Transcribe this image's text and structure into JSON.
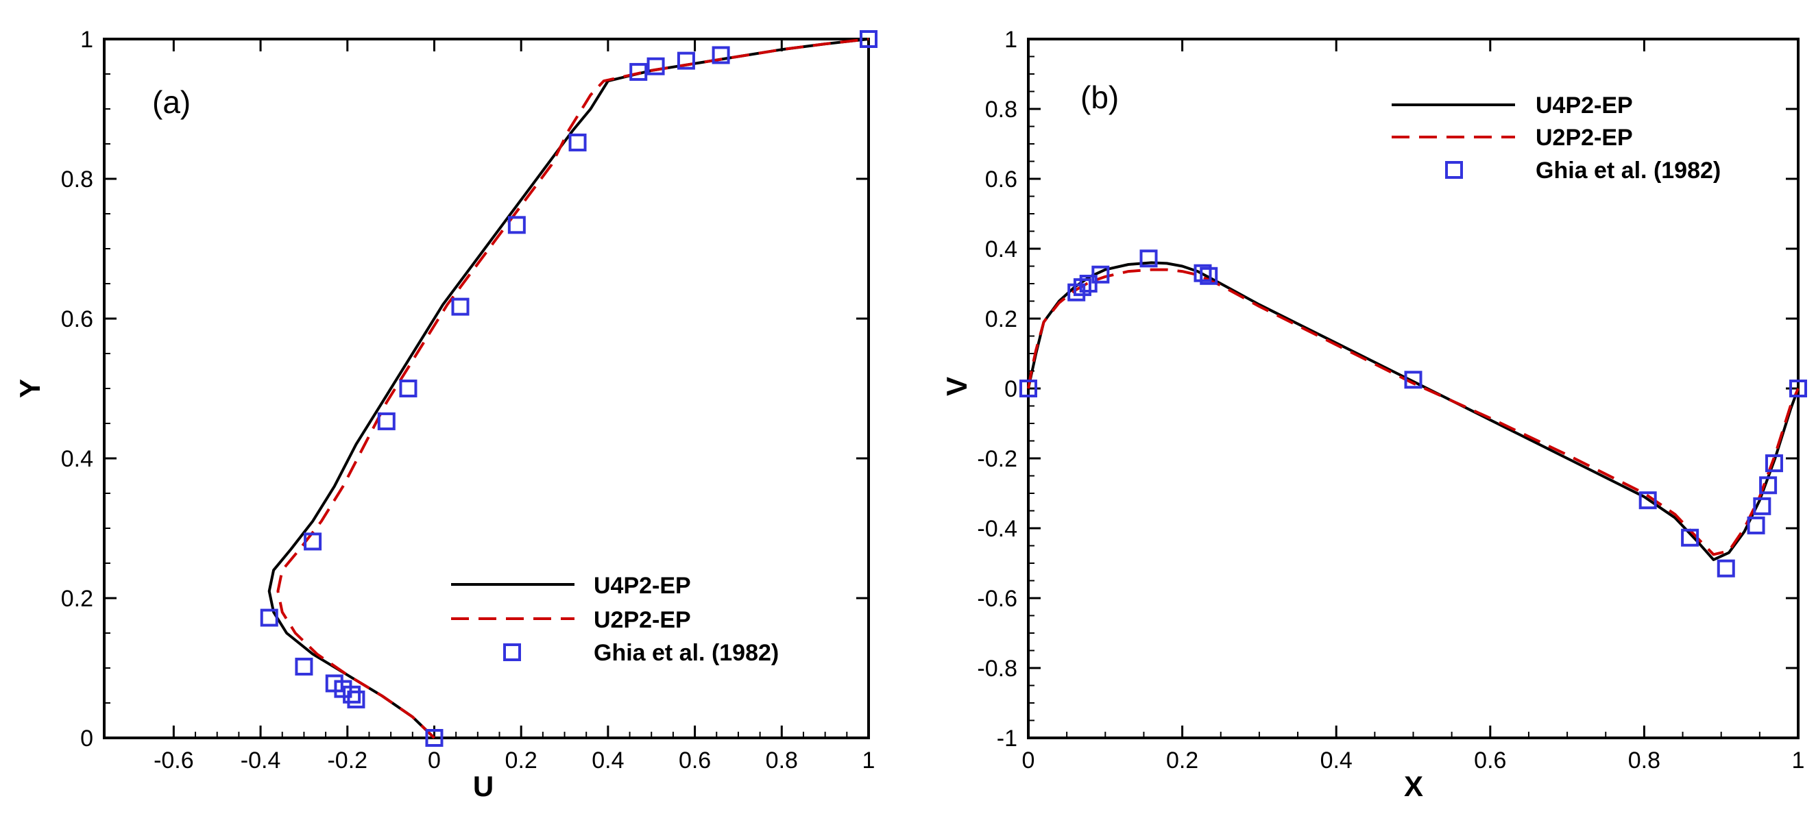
{
  "figure": {
    "panels": [
      "(a)",
      "(b)"
    ]
  },
  "chart_data": [
    {
      "type": "line",
      "panel_label": "(a)",
      "xlabel": "U",
      "ylabel": "Y",
      "xlim": [
        -0.76,
        1.0
      ],
      "ylim": [
        0,
        1
      ],
      "xticks": [
        -0.6,
        -0.4,
        -0.2,
        0,
        0.2,
        0.4,
        0.6,
        0.8,
        1
      ],
      "xtick_labels": [
        "-0.6",
        "-0.4",
        "-0.2",
        "0",
        "0.2",
        "0.4",
        "0.6",
        "0.8",
        "1"
      ],
      "yticks": [
        0,
        0.2,
        0.4,
        0.6,
        0.8,
        1
      ],
      "ytick_labels": [
        "0",
        "0.2",
        "0.4",
        "0.6",
        "0.8",
        "1"
      ],
      "legend_position": "bottom-right",
      "legend": [
        "U4P2-EP",
        "U2P2-EP",
        "Ghia et al. (1982)"
      ],
      "series": [
        {
          "name": "U4P2-EP",
          "style": "solid",
          "color": "#000000",
          "x": [
            0,
            -0.05,
            -0.12,
            -0.2,
            -0.28,
            -0.34,
            -0.37,
            -0.38,
            -0.37,
            -0.33,
            -0.28,
            -0.23,
            -0.18,
            -0.12,
            -0.07,
            -0.02,
            0.02,
            0.08,
            0.14,
            0.2,
            0.26,
            0.32,
            0.36,
            0.38,
            0.4,
            0.5,
            0.6,
            0.7,
            0.8,
            0.9,
            1.0
          ],
          "y": [
            0,
            0.03,
            0.06,
            0.09,
            0.12,
            0.15,
            0.18,
            0.21,
            0.24,
            0.27,
            0.31,
            0.36,
            0.42,
            0.48,
            0.53,
            0.58,
            0.62,
            0.67,
            0.72,
            0.77,
            0.82,
            0.87,
            0.9,
            0.92,
            0.94,
            0.955,
            0.965,
            0.975,
            0.985,
            0.993,
            1.0
          ]
        },
        {
          "name": "U2P2-EP",
          "style": "dashed",
          "color": "#cc0000",
          "x": [
            0,
            -0.05,
            -0.12,
            -0.2,
            -0.27,
            -0.32,
            -0.35,
            -0.36,
            -0.35,
            -0.31,
            -0.26,
            -0.21,
            -0.16,
            -0.11,
            -0.06,
            -0.01,
            0.03,
            0.09,
            0.15,
            0.21,
            0.27,
            0.31,
            0.34,
            0.36,
            0.39,
            0.5,
            0.6,
            0.7,
            0.8,
            0.9,
            1.0
          ],
          "y": [
            0,
            0.03,
            0.06,
            0.09,
            0.12,
            0.15,
            0.18,
            0.21,
            0.24,
            0.27,
            0.31,
            0.36,
            0.42,
            0.48,
            0.53,
            0.58,
            0.62,
            0.67,
            0.72,
            0.77,
            0.82,
            0.87,
            0.9,
            0.92,
            0.94,
            0.955,
            0.965,
            0.975,
            0.985,
            0.993,
            1.0
          ]
        },
        {
          "name": "Ghia et al. (1982)",
          "style": "markers",
          "color": "#3333dd",
          "x": [
            0,
            -0.18,
            -0.19,
            -0.21,
            -0.23,
            -0.3,
            -0.38,
            -0.28,
            -0.11,
            -0.06,
            0.06,
            0.19,
            0.33,
            0.47,
            0.51,
            0.58,
            0.66,
            1.0
          ],
          "y": [
            0,
            0.055,
            0.062,
            0.07,
            0.078,
            0.102,
            0.172,
            0.281,
            0.453,
            0.5,
            0.617,
            0.734,
            0.852,
            0.953,
            0.961,
            0.969,
            0.977,
            1.0
          ]
        }
      ]
    },
    {
      "type": "line",
      "panel_label": "(b)",
      "xlabel": "X",
      "ylabel": "V",
      "xlim": [
        0,
        1
      ],
      "ylim": [
        -1,
        1
      ],
      "xticks": [
        0,
        0.2,
        0.4,
        0.6,
        0.8,
        1
      ],
      "xtick_labels": [
        "0",
        "0.2",
        "0.4",
        "0.6",
        "0.8",
        "1"
      ],
      "yticks": [
        -1,
        -0.8,
        -0.6,
        -0.4,
        -0.2,
        0,
        0.2,
        0.4,
        0.6,
        0.8,
        1
      ],
      "ytick_labels": [
        "-1",
        "-0.8",
        "-0.6",
        "-0.4",
        "-0.2",
        "0",
        "0.2",
        "0.4",
        "0.6",
        "0.8",
        "1"
      ],
      "legend_position": "top-right",
      "legend": [
        "U4P2-EP",
        "U2P2-EP",
        "Ghia et al. (1982)"
      ],
      "series": [
        {
          "name": "U4P2-EP",
          "style": "solid",
          "color": "#000000",
          "x": [
            0,
            0.005,
            0.01,
            0.02,
            0.04,
            0.06,
            0.08,
            0.1,
            0.13,
            0.16,
            0.18,
            0.2,
            0.22,
            0.25,
            0.3,
            0.4,
            0.5,
            0.6,
            0.7,
            0.8,
            0.84,
            0.87,
            0.89,
            0.91,
            0.93,
            0.95,
            0.97,
            0.99,
            1.0
          ],
          "y": [
            0,
            0.05,
            0.1,
            0.19,
            0.25,
            0.29,
            0.32,
            0.34,
            0.355,
            0.36,
            0.358,
            0.35,
            0.335,
            0.3,
            0.24,
            0.13,
            0.02,
            -0.09,
            -0.2,
            -0.31,
            -0.37,
            -0.44,
            -0.49,
            -0.47,
            -0.41,
            -0.32,
            -0.2,
            -0.06,
            0
          ],
          "xd": [
            0,
            0.005,
            0.01,
            0.02,
            0.04,
            0.06,
            0.08,
            0.1,
            0.13,
            0.16,
            0.18,
            0.2,
            0.22,
            0.25,
            0.3,
            0.4,
            0.5,
            0.6,
            0.7,
            0.8,
            0.84,
            0.87,
            0.89,
            0.91,
            0.93,
            0.95,
            0.97,
            0.99,
            1.0
          ]
        },
        {
          "name": "U2P2-EP",
          "style": "dashed",
          "color": "#cc0000",
          "x": [
            0,
            0.005,
            0.01,
            0.02,
            0.04,
            0.06,
            0.08,
            0.1,
            0.13,
            0.16,
            0.18,
            0.2,
            0.22,
            0.25,
            0.3,
            0.4,
            0.5,
            0.6,
            0.7,
            0.8,
            0.84,
            0.87,
            0.89,
            0.91,
            0.93,
            0.95,
            0.97,
            0.99,
            1.0
          ],
          "y": [
            0,
            0.06,
            0.11,
            0.19,
            0.245,
            0.28,
            0.305,
            0.32,
            0.335,
            0.34,
            0.34,
            0.335,
            0.325,
            0.295,
            0.235,
            0.125,
            0.015,
            -0.085,
            -0.19,
            -0.3,
            -0.36,
            -0.43,
            -0.475,
            -0.465,
            -0.4,
            -0.31,
            -0.19,
            -0.05,
            0
          ]
        },
        {
          "name": "Ghia et al. (1982)",
          "style": "markers",
          "color": "#3333dd",
          "x": [
            0,
            0.0625,
            0.0703,
            0.0781,
            0.0938,
            0.1563,
            0.2266,
            0.2344,
            0.5,
            0.8047,
            0.8594,
            0.9063,
            0.9453,
            0.9531,
            0.9609,
            0.9688,
            1.0
          ],
          "y": [
            0,
            0.275,
            0.29,
            0.3,
            0.326,
            0.372,
            0.33,
            0.322,
            0.025,
            -0.32,
            -0.427,
            -0.515,
            -0.392,
            -0.337,
            -0.277,
            -0.214,
            0
          ]
        }
      ]
    }
  ]
}
